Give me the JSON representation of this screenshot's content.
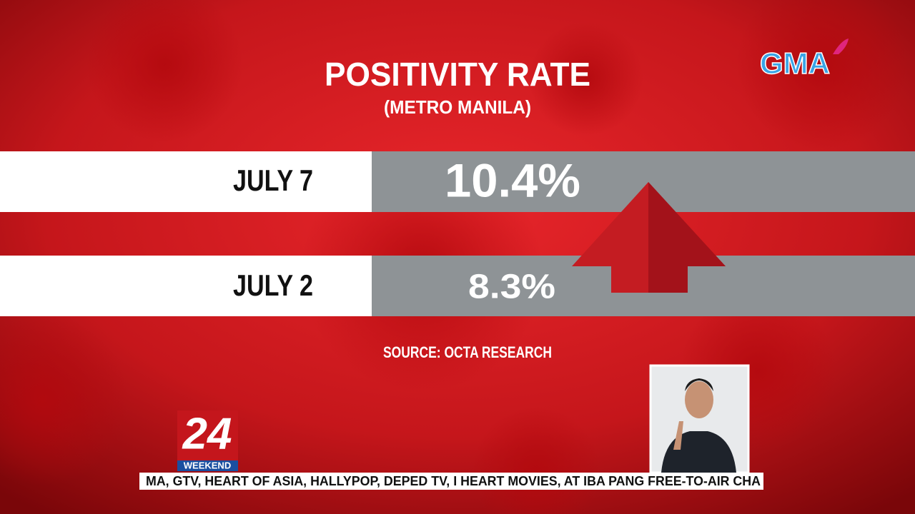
{
  "header": {
    "title": "POSITIVITY RATE",
    "subtitle": "(METRO MANILA)"
  },
  "table": {
    "rows": [
      {
        "date": "JULY 7",
        "value": "10.4%"
      },
      {
        "date": "JULY 2",
        "value": "8.3%"
      }
    ]
  },
  "source": "SOURCE: OCTA RESEARCH",
  "logo": {
    "network": "GMA",
    "show_number": "24",
    "show_name": "WEEKEND"
  },
  "ticker": "MA, GTV, HEART OF ASIA, HALLYPOP, DEPED TV, I HEART MOVIES, AT IBA PANG FREE-TO-AIR CHA"
}
